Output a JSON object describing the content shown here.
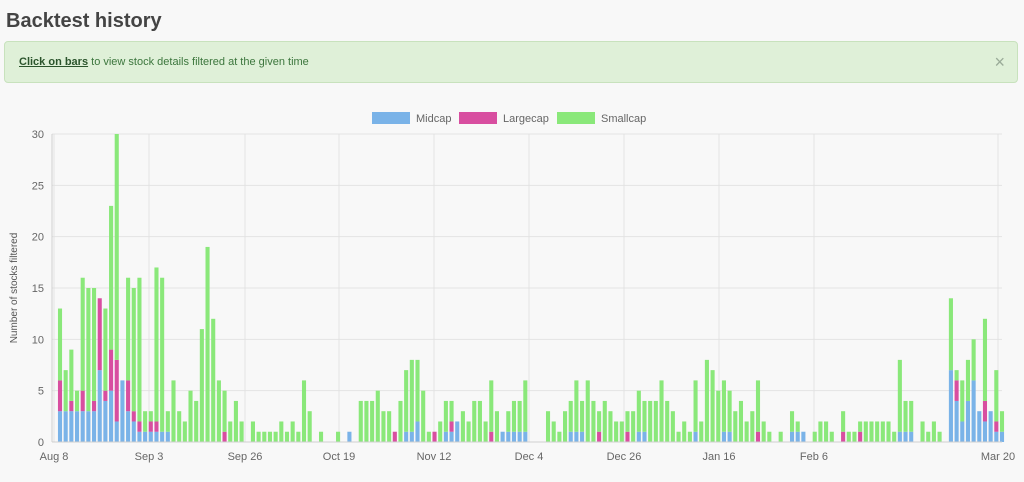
{
  "header": {
    "title": "Backtest history"
  },
  "alert": {
    "link_text": "Click on bars",
    "text": " to view stock details filtered at the given time",
    "close": "×"
  },
  "chart_data": {
    "type": "bar",
    "stacked": true,
    "xlabel": "",
    "ylabel": "Number of stocks filtered",
    "ylim": [
      0,
      30
    ],
    "y_ticks": [
      0,
      5,
      10,
      15,
      20,
      25,
      30
    ],
    "x_tick_labels": [
      "Aug 8",
      "Sep 3",
      "Sep 26",
      "Oct 19",
      "Nov 12",
      "Dec 4",
      "Dec 26",
      "Jan 16",
      "Feb 6",
      "Mar 20"
    ],
    "legend_position": "top",
    "grid": true,
    "colors": {
      "Midcap": "#7ab3e8",
      "Largecap": "#d84ea0",
      "Smallcap": "#8ae87a"
    },
    "series": [
      {
        "name": "Midcap",
        "values": [
          3,
          3,
          3,
          3,
          3,
          3,
          3,
          7,
          4,
          5,
          2,
          6,
          3,
          2,
          1,
          1,
          1,
          1,
          1,
          1,
          0,
          0,
          0,
          0,
          0,
          0,
          0,
          0,
          0,
          0,
          0,
          0,
          0,
          0,
          0,
          0,
          0,
          0,
          0,
          0,
          0,
          0,
          0,
          0,
          0,
          0,
          0,
          0,
          0,
          0,
          0,
          1,
          0,
          0,
          0,
          0,
          0,
          0,
          0,
          0,
          0,
          1,
          1,
          2,
          0,
          0,
          0,
          0,
          1,
          1,
          2,
          0,
          0,
          0,
          0,
          0,
          0,
          0,
          1,
          1,
          1,
          1,
          1,
          0,
          0,
          0,
          0,
          0,
          0,
          0,
          1,
          1,
          1,
          0,
          0,
          0,
          0,
          0,
          0,
          0,
          0,
          0,
          1,
          1,
          0,
          0,
          0,
          0,
          0,
          0,
          0,
          0,
          1,
          0,
          0,
          0,
          0,
          1,
          1,
          0,
          0,
          0,
          0,
          0,
          0,
          0,
          0,
          0,
          0,
          1,
          1,
          1,
          0,
          0,
          0,
          0,
          0,
          0,
          0,
          0,
          0,
          0,
          0,
          0,
          0,
          0,
          0,
          0,
          1,
          1,
          1,
          0,
          0,
          0,
          0,
          0,
          0,
          7,
          4,
          2,
          4,
          6,
          3,
          2,
          3,
          1,
          1
        ]
      },
      {
        "name": "Largecap",
        "values": [
          3,
          0,
          1,
          0,
          2,
          0,
          1,
          7,
          1,
          4,
          6,
          0,
          3,
          1,
          1,
          0,
          1,
          1,
          0,
          0,
          0,
          0,
          0,
          0,
          0,
          0,
          0,
          0,
          0,
          1,
          0,
          0,
          0,
          0,
          0,
          0,
          0,
          0,
          0,
          0,
          0,
          0,
          0,
          0,
          0,
          0,
          0,
          0,
          0,
          0,
          0,
          0,
          0,
          0,
          0,
          0,
          0,
          0,
          0,
          1,
          0,
          0,
          0,
          0,
          0,
          0,
          1,
          0,
          0,
          1,
          0,
          0,
          0,
          0,
          0,
          0,
          1,
          0,
          0,
          0,
          0,
          0,
          0,
          0,
          0,
          0,
          0,
          0,
          0,
          0,
          0,
          0,
          0,
          0,
          0,
          1,
          0,
          0,
          0,
          0,
          1,
          0,
          0,
          0,
          0,
          0,
          0,
          0,
          0,
          0,
          0,
          0,
          0,
          0,
          0,
          0,
          0,
          0,
          0,
          0,
          0,
          0,
          0,
          1,
          0,
          0,
          0,
          0,
          0,
          0,
          0,
          0,
          0,
          0,
          0,
          0,
          0,
          0,
          1,
          0,
          0,
          1,
          0,
          0,
          0,
          0,
          0,
          0,
          0,
          0,
          0,
          0,
          0,
          0,
          0,
          0,
          0,
          0,
          2,
          0,
          0,
          0,
          0,
          2,
          0,
          1,
          0,
          2,
          2,
          1
        ]
      },
      {
        "name": "Smallcap",
        "values": [
          7,
          4,
          5,
          2,
          11,
          12,
          11,
          0,
          8,
          14,
          22,
          0,
          10,
          12,
          14,
          2,
          1,
          15,
          15,
          2,
          6,
          3,
          2,
          5,
          4,
          11,
          19,
          12,
          6,
          4,
          2,
          4,
          2,
          0,
          2,
          1,
          1,
          1,
          1,
          2,
          1,
          2,
          1,
          6,
          3,
          0,
          1,
          0,
          0,
          1,
          0,
          0,
          0,
          4,
          4,
          4,
          5,
          3,
          3,
          0,
          4,
          6,
          7,
          6,
          5,
          1,
          0,
          2,
          3,
          2,
          0,
          3,
          2,
          4,
          4,
          2,
          5,
          3,
          0,
          2,
          3,
          3,
          5,
          0,
          0,
          0,
          3,
          2,
          1,
          3,
          3,
          5,
          3,
          6,
          4,
          2,
          4,
          3,
          2,
          2,
          2,
          3,
          4,
          3,
          4,
          4,
          6,
          4,
          3,
          1,
          2,
          1,
          5,
          2,
          8,
          7,
          5,
          5,
          4,
          3,
          4,
          2,
          3,
          5,
          2,
          1,
          0,
          1,
          0,
          2,
          1,
          0,
          0,
          1,
          2,
          2,
          1,
          0,
          2,
          1,
          1,
          1,
          2,
          2,
          2,
          2,
          2,
          1,
          7,
          3,
          3,
          0,
          2,
          1,
          2,
          1,
          0,
          7,
          1,
          4,
          4,
          4,
          0,
          8,
          0,
          5,
          2,
          1,
          12,
          5,
          8,
          7,
          7
        ]
      }
    ]
  }
}
